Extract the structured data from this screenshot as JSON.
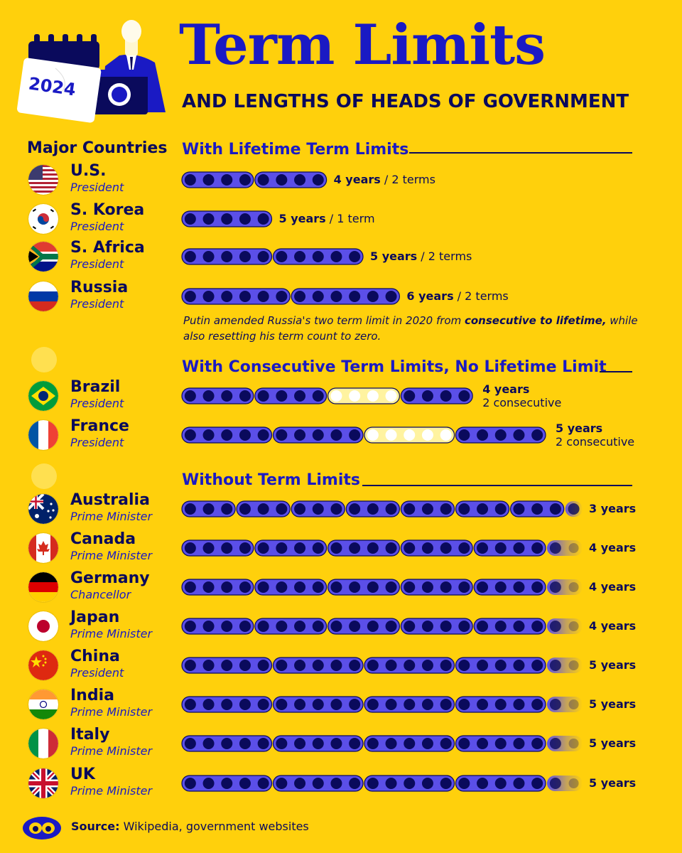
{
  "header": {
    "title": "Term Limits",
    "subtitle": "AND LENGTHS OF HEADS OF GOVERNMENT",
    "calendar_year": "2024"
  },
  "column_heading": "Major Countries",
  "sections": {
    "lifetime": "With Lifetime Term Limits",
    "consecutive": "With Consecutive Term Limits, No Lifetime Limit",
    "none": "Without Term Limits"
  },
  "note": {
    "pre": "Putin amended Russia's two term limit in 2020 from ",
    "bold": "consecutive to lifetime,",
    "post": " while also resetting his term count to zero."
  },
  "source": {
    "label": "Source:",
    "text": " Wikipedia, government websites"
  },
  "colors": {
    "background": "#FFD00C",
    "term_fill": "#5B4FE8",
    "term_dot": "#0A0A5C",
    "gap_fill": "#FFF3A0",
    "title": "#1A1AC4"
  },
  "chart_data": {
    "type": "table",
    "rows": [
      {
        "country": "U.S.",
        "role": "President",
        "flag": "us-flag-icon",
        "category": "lifetime",
        "term_years": 4,
        "terms": 2,
        "label_years": "4 years",
        "label_extra": " / 2 terms"
      },
      {
        "country": "S. Korea",
        "role": "President",
        "flag": "south-korea-flag-icon",
        "category": "lifetime",
        "term_years": 5,
        "terms": 1,
        "label_years": "5 years",
        "label_extra": " / 1 term"
      },
      {
        "country": "S. Africa",
        "role": "President",
        "flag": "south-africa-flag-icon",
        "category": "lifetime",
        "term_years": 5,
        "terms": 2,
        "label_years": "5 years",
        "label_extra": " / 2 terms"
      },
      {
        "country": "Russia",
        "role": "President",
        "flag": "russia-flag-icon",
        "category": "lifetime",
        "term_years": 6,
        "terms": 2,
        "label_years": "6 years",
        "label_extra": " / 2 terms"
      },
      {
        "country": "Brazil",
        "role": "President",
        "flag": "brazil-flag-icon",
        "category": "consecutive",
        "term_years": 4,
        "consecutive_terms": 2,
        "label_years": "4 years",
        "label_extra": "2 consecutive"
      },
      {
        "country": "France",
        "role": "President",
        "flag": "france-flag-icon",
        "category": "consecutive",
        "term_years": 5,
        "consecutive_terms": 2,
        "label_years": "5 years",
        "label_extra": "2 consecutive"
      },
      {
        "country": "Australia",
        "role": "Prime Minister",
        "flag": "australia-flag-icon",
        "category": "none",
        "term_years": 3,
        "label_years": "3 years"
      },
      {
        "country": "Canada",
        "role": "Prime Minister",
        "flag": "canada-flag-icon",
        "category": "none",
        "term_years": 4,
        "label_years": "4 years"
      },
      {
        "country": "Germany",
        "role": "Chancellor",
        "flag": "germany-flag-icon",
        "category": "none",
        "term_years": 4,
        "label_years": "4 years"
      },
      {
        "country": "Japan",
        "role": "Prime Minister",
        "flag": "japan-flag-icon",
        "category": "none",
        "term_years": 4,
        "label_years": "4 years"
      },
      {
        "country": "China",
        "role": "President",
        "flag": "china-flag-icon",
        "category": "none",
        "term_years": 5,
        "label_years": "5 years"
      },
      {
        "country": "India",
        "role": "Prime Minister",
        "flag": "india-flag-icon",
        "category": "none",
        "term_years": 5,
        "label_years": "5 years"
      },
      {
        "country": "Italy",
        "role": "Prime Minister",
        "flag": "italy-flag-icon",
        "category": "none",
        "term_years": 5,
        "label_years": "5 years"
      },
      {
        "country": "UK",
        "role": "Prime Minister",
        "flag": "uk-flag-icon",
        "category": "none",
        "term_years": 5,
        "label_years": "5 years"
      }
    ]
  }
}
